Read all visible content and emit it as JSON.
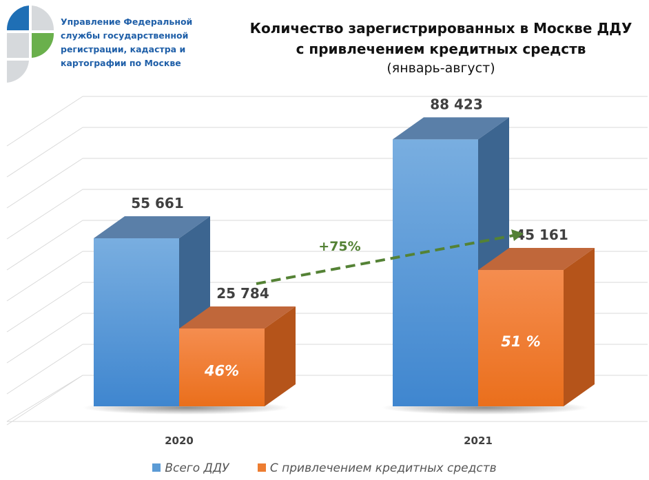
{
  "logo": {
    "org_lines": [
      "Управление Федеральной",
      "службы государственной",
      "регистрации, кадастра и",
      "картографии по Москве"
    ]
  },
  "chart_data": {
    "type": "bar",
    "title_line1": "Количество зарегистрированных в Москве ДДУ",
    "title_line2": "с привлечением кредитных средств",
    "subtitle": "(январь-август)",
    "categories": [
      "2020",
      "2021"
    ],
    "series": [
      {
        "name": "Всего ДДУ",
        "values": [
          55661,
          88423
        ],
        "labels": [
          "55 661",
          "88 423"
        ],
        "color": "#5b9bd5"
      },
      {
        "name": "С привлечением кредитных средств",
        "values": [
          25784,
          45161
        ],
        "labels": [
          "25 784",
          "45 161"
        ],
        "share_labels": [
          "46%",
          "51 %"
        ],
        "color": "#ed7d31"
      }
    ],
    "annotation": {
      "text": "+75%",
      "color": "#548235"
    },
    "ylim": [
      0,
      100000
    ],
    "grid": true,
    "legend_position": "bottom"
  }
}
